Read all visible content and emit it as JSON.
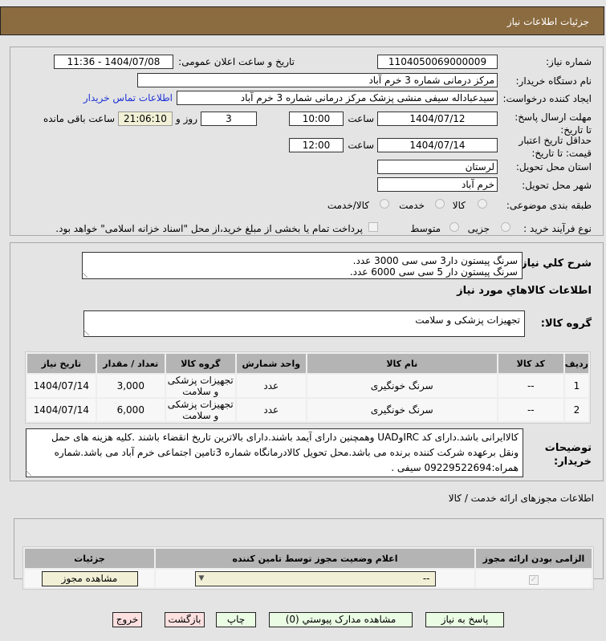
{
  "header": {
    "title": "جزئیات اطلاعات نیاز"
  },
  "watermark": "AriaTender.neT",
  "form": {
    "need_number_label": "شماره نیاز:",
    "need_number": "1104050069000009",
    "announce_label": "تاریخ و ساعت اعلان عمومی:",
    "announce_value": "1404/07/08 - 11:36",
    "buyer_label": "نام دستگاه خریدار:",
    "buyer": "مرکز درمانی شماره 3 خرم آباد",
    "creator_label": "ایجاد کننده درخواست:",
    "creator": "سیدعباداله سیفی منشی پزشک مرکز درمانی شماره 3 خرم آباد",
    "contact_link": "اطلاعات تماس خریدار",
    "deadline_label": "مهلت ارسال پاسخ: تا تاریخ:",
    "deadline_date": "1404/07/12",
    "time_label": "ساعت",
    "deadline_time": "10:00",
    "days": "3",
    "days_label": "روز و",
    "remaining": "21:06:10",
    "remaining_label": "ساعت باقی مانده",
    "validity_label": "حداقل تاریخ اعتبار قیمت: تا تاریخ:",
    "validity_date": "1404/07/14",
    "validity_time": "12:00",
    "province_label": "استان محل تحویل:",
    "province": "لرستان",
    "city_label": "شهر محل تحویل:",
    "city": "خرم آباد",
    "category_label": "طبقه بندی موضوعی:",
    "category_options": [
      "کالا",
      "خدمت",
      "کالا/خدمت"
    ],
    "process_label": "نوع فرآیند خرید :",
    "process_options": [
      "جزیی",
      "متوسط"
    ],
    "payment_note": "پرداخت تمام یا بخشی از مبلغ خرید،از محل \"اسناد خزانه اسلامی\" خواهد بود."
  },
  "needs": {
    "summary_label": "شرح کلي نیاز:",
    "summary_lines": [
      "سرنگ پیستون دار3 سی سی 3000 عدد.",
      "سرنگ پیستون دار 5 سی سی 6000 عدد."
    ],
    "goods_title": "اطلاعات کالاهاي مورد نیاز",
    "group_label": "گروه کالا:",
    "group": "تجهیزات پزشکی و سلامت",
    "columns": [
      "ردیف",
      "کد کالا",
      "نام کالا",
      "واحد شمارش",
      "گروه کالا",
      "تعداد / مقدار",
      "تاریخ نیاز"
    ],
    "rows": [
      [
        "1",
        "--",
        "سرنگ خونگیری",
        "عدد",
        "تجهیزات پزشکی و سلامت",
        "3,000",
        "1404/07/14"
      ],
      [
        "2",
        "--",
        "سرنگ خونگیری",
        "عدد",
        "تجهیزات پزشکی و سلامت",
        "6,000",
        "1404/07/14"
      ]
    ],
    "desc_label": "توضیحات خریدار:",
    "desc": "کالاایرانی باشد.دارای کد IRCوUAD وهمچنین دارای آیمد باشند.دارای بالاترین تاریخ انقضاء باشند .کلیه هزینه های حمل ونقل برعهده شرکت کننده برنده می باشد.محل تحویل کالادرمانگاه شماره 3تامین اجتماعی خرم آباد می باشد.شماره همراه:09229522694 سیفی ."
  },
  "permits": {
    "title": "اطلاعات مجوزهای ارائه خدمت / کالا",
    "columns": [
      "الزامی بودن ارائه مجوز",
      "اعلام وضعیت مجوز توسط تامین کننده",
      "جزئیات"
    ],
    "select_value": "--",
    "view_button": "مشاهده مجوز"
  },
  "buttons": {
    "reply": "پاسخ به نیاز",
    "attachments": "مشاهده مدارک پیوستي (0)",
    "print": "چاپ",
    "back": "بازگشت",
    "exit": "خروج"
  }
}
